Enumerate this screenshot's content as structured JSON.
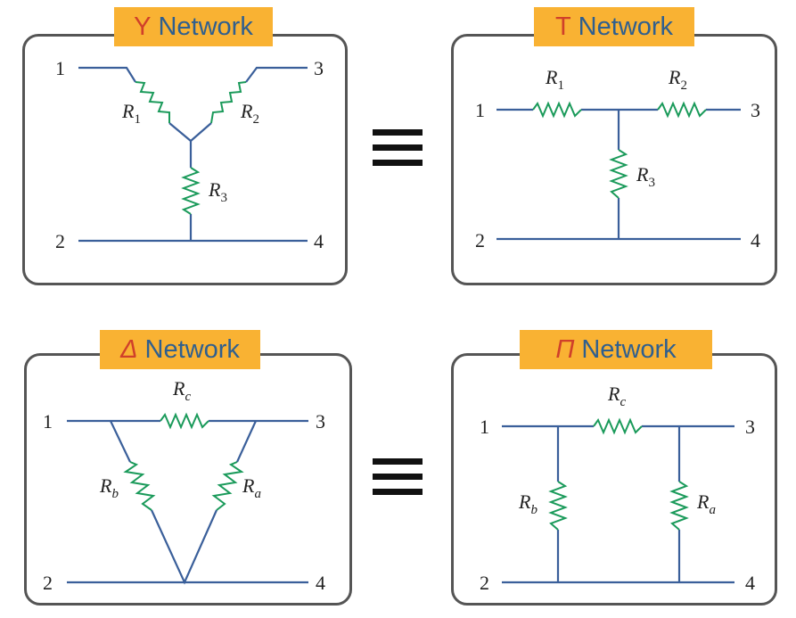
{
  "y_network": {
    "symbol": "Y",
    "title": "Network",
    "nodes": [
      "1",
      "2",
      "3",
      "4"
    ],
    "resistors": [
      {
        "name": "R",
        "sub": "1"
      },
      {
        "name": "R",
        "sub": "2"
      },
      {
        "name": "R",
        "sub": "3"
      }
    ]
  },
  "t_network": {
    "symbol": "T",
    "title": "Network",
    "nodes": [
      "1",
      "2",
      "3",
      "4"
    ],
    "resistors": [
      {
        "name": "R",
        "sub": "1"
      },
      {
        "name": "R",
        "sub": "2"
      },
      {
        "name": "R",
        "sub": "3"
      }
    ]
  },
  "delta_network": {
    "symbol": "Δ",
    "title": "Network",
    "nodes": [
      "1",
      "2",
      "3",
      "4"
    ],
    "resistors": [
      {
        "name": "R",
        "sub": "c"
      },
      {
        "name": "R",
        "sub": "b"
      },
      {
        "name": "R",
        "sub": "a"
      }
    ]
  },
  "pi_network": {
    "symbol": "Π",
    "title": "Network",
    "nodes": [
      "1",
      "2",
      "3",
      "4"
    ],
    "resistors": [
      {
        "name": "R",
        "sub": "c"
      },
      {
        "name": "R",
        "sub": "b"
      },
      {
        "name": "R",
        "sub": "a"
      }
    ]
  },
  "equivalence_symbol": "≡",
  "colors": {
    "tag_background": "#f9b233",
    "title_text": "#2f5f8f",
    "symbol": "#d0402a",
    "wire": "#3a5f9a",
    "resistor": "#1a9a5a",
    "border": "#555555"
  }
}
